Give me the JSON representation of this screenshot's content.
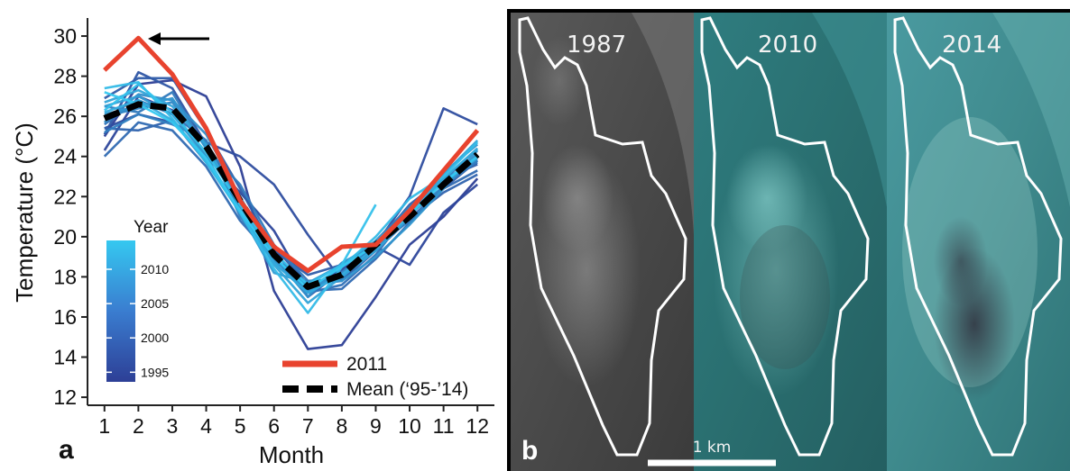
{
  "panel_a_label": "a",
  "panel_b_label": "b",
  "chart_data": {
    "type": "line",
    "xlabel": "Month",
    "ylabel": "Temperature (°C)",
    "x": [
      1,
      2,
      3,
      4,
      5,
      6,
      7,
      8,
      9,
      10,
      11,
      12
    ],
    "x_ticks": [
      "1",
      "2",
      "3",
      "4",
      "5",
      "6",
      "7",
      "8",
      "9",
      "10",
      "11",
      "12"
    ],
    "y_ticks": [
      "12",
      "14",
      "16",
      "18",
      "20",
      "22",
      "24",
      "26",
      "28",
      "30"
    ],
    "xlim": [
      0.5,
      12.5
    ],
    "ylim": [
      11.6,
      30.9
    ],
    "grid": false,
    "annotation": "arrow pointing to 2011 February peak",
    "color_scale": {
      "title": "Year",
      "ticks": [
        "1995",
        "2000",
        "2005",
        "2010"
      ],
      "low_color": "#2d3f96",
      "high_color": "#35c8f0"
    },
    "legend": [
      {
        "label": "2011",
        "color": "#e8432e",
        "style": "solid"
      },
      {
        "label": "Mean (‘95-’14)",
        "color": "#000000",
        "style": "dashed"
      }
    ],
    "highlight_series": [
      {
        "name": "2011",
        "color": "#e8432e",
        "values": [
          28.3,
          29.9,
          28.1,
          25.4,
          21.8,
          19.5,
          18.3,
          19.5,
          19.6,
          21.3,
          23.3,
          25.3
        ]
      },
      {
        "name": "Mean (‘95-’14)",
        "color": "#000000",
        "values": [
          25.9,
          26.6,
          26.4,
          24.5,
          21.8,
          19.1,
          17.5,
          18.1,
          19.6,
          21.0,
          22.6,
          24.1
        ]
      }
    ],
    "year_series": [
      {
        "year": 1995,
        "values": [
          25.0,
          27.6,
          27.8,
          27.0,
          23.5,
          17.3,
          14.4,
          14.6,
          17.0,
          19.6,
          21.0,
          22.9
        ]
      },
      {
        "year": 1996,
        "values": [
          24.3,
          27.0,
          26.3,
          24.0,
          22.2,
          20.3,
          17.4,
          18.4,
          19.5,
          18.6,
          21.2,
          22.6
        ]
      },
      {
        "year": 1997,
        "values": [
          25.4,
          26.1,
          25.7,
          24.7,
          24.0,
          22.6,
          20.1,
          17.8,
          19.6,
          22.0,
          26.4,
          25.6
        ]
      },
      {
        "year": 1998,
        "values": [
          25.1,
          28.2,
          27.4,
          24.6,
          21.8,
          19.4,
          17.0,
          18.3,
          19.4,
          20.9,
          22.4,
          23.8
        ]
      },
      {
        "year": 1999,
        "values": [
          26.9,
          27.9,
          27.9,
          25.3,
          22.4,
          19.3,
          18.1,
          18.6,
          19.6,
          21.6,
          22.9,
          23.6
        ]
      },
      {
        "year": 2000,
        "values": [
          25.4,
          25.3,
          25.8,
          23.7,
          21.5,
          19.5,
          17.6,
          17.8,
          19.3,
          20.9,
          22.2,
          23.1
        ]
      },
      {
        "year": 2001,
        "values": [
          24.0,
          25.7,
          25.3,
          23.5,
          20.8,
          18.9,
          17.3,
          17.4,
          18.9,
          20.7,
          22.4,
          23.3
        ]
      },
      {
        "year": 2002,
        "values": [
          25.6,
          26.8,
          26.1,
          24.8,
          21.2,
          18.7,
          17.2,
          17.6,
          19.1,
          21.3,
          22.8,
          23.7
        ]
      },
      {
        "year": 2003,
        "values": [
          26.5,
          26.2,
          27.2,
          24.4,
          22.6,
          19.6,
          17.8,
          17.9,
          19.8,
          21.5,
          22.8,
          24.4
        ]
      },
      {
        "year": 2004,
        "values": [
          25.2,
          26.1,
          25.6,
          24.8,
          21.0,
          18.8,
          17.6,
          18.0,
          19.5,
          20.8,
          22.5,
          23.8
        ]
      },
      {
        "year": 2005,
        "values": [
          26.0,
          26.4,
          26.7,
          24.5,
          21.8,
          19.0,
          17.3,
          18.2,
          19.7,
          21.1,
          22.5,
          24.1
        ]
      },
      {
        "year": 2006,
        "values": [
          25.7,
          27.1,
          26.8,
          25.1,
          22.0,
          19.0,
          17.0,
          18.7,
          19.6,
          21.4,
          23.2,
          24.6
        ]
      },
      {
        "year": 2007,
        "values": [
          26.1,
          26.5,
          26.9,
          24.4,
          21.6,
          18.8,
          17.7,
          17.8,
          19.0,
          20.6,
          22.4,
          24.3
        ]
      },
      {
        "year": 2008,
        "values": [
          26.5,
          27.0,
          26.1,
          24.0,
          21.2,
          18.2,
          17.7,
          18.6,
          19.8,
          21.2,
          22.8,
          23.9
        ]
      },
      {
        "year": 2009,
        "values": [
          26.7,
          27.3,
          26.5,
          24.6,
          21.5,
          18.6,
          16.7,
          18.0,
          19.3,
          21.0,
          23.1,
          24.8
        ]
      },
      {
        "year": 2010,
        "values": [
          26.2,
          26.8,
          25.8,
          23.9,
          21.2,
          18.7,
          17.2,
          18.1,
          19.5,
          21.2,
          22.9,
          24.4
        ]
      },
      {
        "year": 2012,
        "values": [
          27.4,
          27.7,
          25.9,
          23.7,
          21.2,
          18.4,
          16.2,
          18.5,
          20.0,
          21.9,
          23.0,
          24.7
        ]
      },
      {
        "year": 2013,
        "values": [
          26.3,
          27.6,
          26.2,
          24.2,
          21.6,
          19.2,
          17.6,
          18.6,
          21.6,
          null,
          null,
          null
        ]
      },
      {
        "year": 2014,
        "values": [
          27.2,
          26.6,
          25.7,
          23.9,
          21.3,
          19.0,
          17.4,
          18.5,
          19.6,
          21.1,
          22.7,
          24.0
        ]
      }
    ]
  },
  "satellite": {
    "panels": [
      {
        "year_label": "1987",
        "style": "grayscale"
      },
      {
        "year_label": "2010",
        "style": "color"
      },
      {
        "year_label": "2014",
        "style": "color"
      }
    ],
    "scale_bar_label": "1 km"
  }
}
